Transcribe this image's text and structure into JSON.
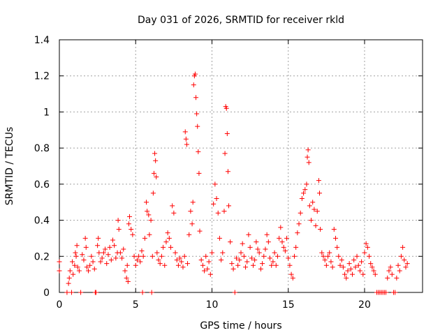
{
  "chart_data": {
    "type": "scatter",
    "title": "Day 031 of 2026, SRMTID for receiver rkld",
    "xlabel": "GPS time / hours",
    "ylabel": "SRMTID / TECUs",
    "xlim": [
      0,
      23.8
    ],
    "ylim": [
      0,
      1.4
    ],
    "xticks": [
      0,
      5,
      10,
      15,
      20
    ],
    "xtick_labels": [
      "0",
      "5",
      "10",
      "15",
      "20"
    ],
    "yticks": [
      0,
      0.2,
      0.4,
      0.6,
      0.8,
      1.0,
      1.2,
      1.4
    ],
    "ytick_labels": [
      "0",
      "0.2",
      "0.4",
      "0.6",
      "0.8",
      "1",
      "1.2",
      "1.4"
    ],
    "grid": true,
    "marker": "+",
    "series": [
      {
        "name": "SRMTID",
        "color": "#ff0000",
        "points": [
          [
            0.0,
            0.17
          ],
          [
            0.0,
            0.12
          ],
          [
            0.5,
            0.0
          ],
          [
            0.6,
            0.05
          ],
          [
            0.65,
            0.08
          ],
          [
            0.7,
            0.12
          ],
          [
            0.8,
            0.0
          ],
          [
            0.85,
            0.17
          ],
          [
            0.9,
            0.1
          ],
          [
            1.0,
            0.15
          ],
          [
            1.05,
            0.22
          ],
          [
            1.1,
            0.2
          ],
          [
            1.15,
            0.26
          ],
          [
            1.2,
            0.14
          ],
          [
            1.3,
            0.12
          ],
          [
            1.4,
            0.0
          ],
          [
            1.5,
            0.21
          ],
          [
            1.6,
            0.18
          ],
          [
            1.7,
            0.3
          ],
          [
            1.75,
            0.25
          ],
          [
            1.8,
            0.14
          ],
          [
            1.9,
            0.12
          ],
          [
            2.0,
            0.15
          ],
          [
            2.1,
            0.2
          ],
          [
            2.2,
            0.17
          ],
          [
            2.3,
            0.13
          ],
          [
            2.35,
            0.0
          ],
          [
            2.4,
            0.0
          ],
          [
            2.5,
            0.26
          ],
          [
            2.55,
            0.3
          ],
          [
            2.6,
            0.22
          ],
          [
            2.7,
            0.17
          ],
          [
            2.8,
            0.19
          ],
          [
            2.9,
            0.22
          ],
          [
            3.0,
            0.24
          ],
          [
            3.1,
            0.16
          ],
          [
            3.2,
            0.21
          ],
          [
            3.3,
            0.25
          ],
          [
            3.4,
            0.18
          ],
          [
            3.5,
            0.29
          ],
          [
            3.6,
            0.26
          ],
          [
            3.7,
            0.19
          ],
          [
            3.8,
            0.22
          ],
          [
            3.85,
            0.4
          ],
          [
            3.9,
            0.35
          ],
          [
            4.0,
            0.22
          ],
          [
            4.1,
            0.19
          ],
          [
            4.2,
            0.24
          ],
          [
            4.3,
            0.12
          ],
          [
            4.4,
            0.08
          ],
          [
            4.45,
            0.15
          ],
          [
            4.5,
            0.06
          ],
          [
            4.55,
            0.38
          ],
          [
            4.6,
            0.42
          ],
          [
            4.7,
            0.35
          ],
          [
            4.8,
            0.32
          ],
          [
            4.9,
            0.2
          ],
          [
            5.0,
            0.15
          ],
          [
            5.1,
            0.18
          ],
          [
            5.2,
            0.2
          ],
          [
            5.3,
            0.17
          ],
          [
            5.4,
            0.23
          ],
          [
            5.45,
            0.0
          ],
          [
            5.5,
            0.2
          ],
          [
            5.6,
            0.3
          ],
          [
            5.7,
            0.5
          ],
          [
            5.75,
            0.45
          ],
          [
            5.85,
            0.43
          ],
          [
            5.9,
            0.32
          ],
          [
            6.0,
            0.4
          ],
          [
            6.05,
            0.0
          ],
          [
            6.1,
            0.2
          ],
          [
            6.15,
            0.55
          ],
          [
            6.2,
            0.66
          ],
          [
            6.25,
            0.77
          ],
          [
            6.3,
            0.73
          ],
          [
            6.35,
            0.64
          ],
          [
            6.4,
            0.22
          ],
          [
            6.5,
            0.18
          ],
          [
            6.6,
            0.16
          ],
          [
            6.7,
            0.2
          ],
          [
            6.8,
            0.25
          ],
          [
            6.9,
            0.15
          ],
          [
            7.0,
            0.28
          ],
          [
            7.1,
            0.33
          ],
          [
            7.2,
            0.3
          ],
          [
            7.3,
            0.25
          ],
          [
            7.4,
            0.48
          ],
          [
            7.5,
            0.44
          ],
          [
            7.6,
            0.22
          ],
          [
            7.7,
            0.18
          ],
          [
            7.8,
            0.15
          ],
          [
            7.9,
            0.19
          ],
          [
            8.0,
            0.17
          ],
          [
            8.1,
            0.14
          ],
          [
            8.2,
            0.2
          ],
          [
            8.25,
            0.89
          ],
          [
            8.3,
            0.85
          ],
          [
            8.35,
            0.82
          ],
          [
            8.4,
            0.16
          ],
          [
            8.5,
            0.32
          ],
          [
            8.6,
            0.45
          ],
          [
            8.7,
            0.38
          ],
          [
            8.75,
            0.5
          ],
          [
            8.8,
            1.15
          ],
          [
            8.85,
            1.2
          ],
          [
            8.9,
            1.21
          ],
          [
            8.95,
            1.08
          ],
          [
            9.0,
            0.99
          ],
          [
            9.05,
            0.92
          ],
          [
            9.1,
            0.78
          ],
          [
            9.15,
            0.66
          ],
          [
            9.2,
            0.34
          ],
          [
            9.3,
            0.18
          ],
          [
            9.4,
            0.15
          ],
          [
            9.5,
            0.12
          ],
          [
            9.6,
            0.2
          ],
          [
            9.7,
            0.13
          ],
          [
            9.8,
            0.17
          ],
          [
            9.9,
            0.1
          ],
          [
            10.0,
            0.22
          ],
          [
            10.1,
            0.49
          ],
          [
            10.2,
            0.6
          ],
          [
            10.3,
            0.52
          ],
          [
            10.4,
            0.44
          ],
          [
            10.5,
            0.3
          ],
          [
            10.6,
            0.18
          ],
          [
            10.7,
            0.22
          ],
          [
            10.8,
            0.45
          ],
          [
            10.85,
            0.77
          ],
          [
            10.9,
            1.03
          ],
          [
            10.95,
            1.02
          ],
          [
            11.0,
            0.88
          ],
          [
            11.05,
            0.67
          ],
          [
            11.1,
            0.48
          ],
          [
            11.2,
            0.28
          ],
          [
            11.3,
            0.16
          ],
          [
            11.4,
            0.13
          ],
          [
            11.5,
            0.0
          ],
          [
            11.6,
            0.19
          ],
          [
            11.7,
            0.15
          ],
          [
            11.8,
            0.18
          ],
          [
            11.9,
            0.22
          ],
          [
            12.0,
            0.27
          ],
          [
            12.1,
            0.2
          ],
          [
            12.2,
            0.14
          ],
          [
            12.3,
            0.17
          ],
          [
            12.4,
            0.32
          ],
          [
            12.5,
            0.25
          ],
          [
            12.6,
            0.19
          ],
          [
            12.7,
            0.15
          ],
          [
            12.8,
            0.18
          ],
          [
            12.9,
            0.28
          ],
          [
            13.0,
            0.24
          ],
          [
            13.1,
            0.22
          ],
          [
            13.2,
            0.13
          ],
          [
            13.3,
            0.16
          ],
          [
            13.4,
            0.2
          ],
          [
            13.5,
            0.24
          ],
          [
            13.6,
            0.32
          ],
          [
            13.7,
            0.28
          ],
          [
            13.8,
            0.19
          ],
          [
            13.9,
            0.15
          ],
          [
            14.0,
            0.17
          ],
          [
            14.1,
            0.22
          ],
          [
            14.2,
            0.15
          ],
          [
            14.3,
            0.2
          ],
          [
            14.4,
            0.3
          ],
          [
            14.5,
            0.36
          ],
          [
            14.6,
            0.28
          ],
          [
            14.7,
            0.25
          ],
          [
            14.8,
            0.23
          ],
          [
            14.9,
            0.3
          ],
          [
            15.0,
            0.19
          ],
          [
            15.1,
            0.15
          ],
          [
            15.2,
            0.1
          ],
          [
            15.3,
            0.08
          ],
          [
            15.4,
            0.2
          ],
          [
            15.5,
            0.25
          ],
          [
            15.6,
            0.33
          ],
          [
            15.7,
            0.38
          ],
          [
            15.8,
            0.44
          ],
          [
            15.9,
            0.52
          ],
          [
            16.0,
            0.55
          ],
          [
            16.1,
            0.57
          ],
          [
            16.2,
            0.6
          ],
          [
            16.25,
            0.75
          ],
          [
            16.3,
            0.79
          ],
          [
            16.35,
            0.72
          ],
          [
            16.4,
            0.48
          ],
          [
            16.5,
            0.4
          ],
          [
            16.6,
            0.5
          ],
          [
            16.7,
            0.46
          ],
          [
            16.8,
            0.37
          ],
          [
            16.9,
            0.45
          ],
          [
            17.0,
            0.62
          ],
          [
            17.05,
            0.55
          ],
          [
            17.1,
            0.35
          ],
          [
            17.2,
            0.22
          ],
          [
            17.3,
            0.2
          ],
          [
            17.4,
            0.18
          ],
          [
            17.5,
            0.15
          ],
          [
            17.6,
            0.2
          ],
          [
            17.7,
            0.22
          ],
          [
            17.8,
            0.17
          ],
          [
            17.9,
            0.14
          ],
          [
            18.0,
            0.35
          ],
          [
            18.1,
            0.3
          ],
          [
            18.2,
            0.25
          ],
          [
            18.3,
            0.2
          ],
          [
            18.4,
            0.15
          ],
          [
            18.5,
            0.18
          ],
          [
            18.6,
            0.14
          ],
          [
            18.7,
            0.1
          ],
          [
            18.8,
            0.08
          ],
          [
            18.9,
            0.12
          ],
          [
            19.0,
            0.16
          ],
          [
            19.1,
            0.13
          ],
          [
            19.2,
            0.1
          ],
          [
            19.3,
            0.18
          ],
          [
            19.4,
            0.14
          ],
          [
            19.5,
            0.2
          ],
          [
            19.6,
            0.15
          ],
          [
            19.7,
            0.12
          ],
          [
            19.8,
            0.17
          ],
          [
            19.9,
            0.1
          ],
          [
            20.0,
            0.22
          ],
          [
            20.1,
            0.27
          ],
          [
            20.2,
            0.25
          ],
          [
            20.3,
            0.2
          ],
          [
            20.4,
            0.16
          ],
          [
            20.5,
            0.14
          ],
          [
            20.6,
            0.12
          ],
          [
            20.7,
            0.1
          ],
          [
            20.8,
            0.0
          ],
          [
            20.9,
            0.0
          ],
          [
            21.0,
            0.0
          ],
          [
            21.1,
            0.0
          ],
          [
            21.2,
            0.0
          ],
          [
            21.3,
            0.0
          ],
          [
            21.4,
            0.0
          ],
          [
            21.5,
            0.08
          ],
          [
            21.6,
            0.12
          ],
          [
            21.7,
            0.14
          ],
          [
            21.8,
            0.1
          ],
          [
            21.9,
            0.0
          ],
          [
            22.0,
            0.0
          ],
          [
            22.1,
            0.08
          ],
          [
            22.2,
            0.15
          ],
          [
            22.3,
            0.12
          ],
          [
            22.4,
            0.2
          ],
          [
            22.5,
            0.25
          ],
          [
            22.6,
            0.18
          ],
          [
            22.7,
            0.14
          ],
          [
            22.8,
            0.16
          ]
        ]
      }
    ]
  }
}
